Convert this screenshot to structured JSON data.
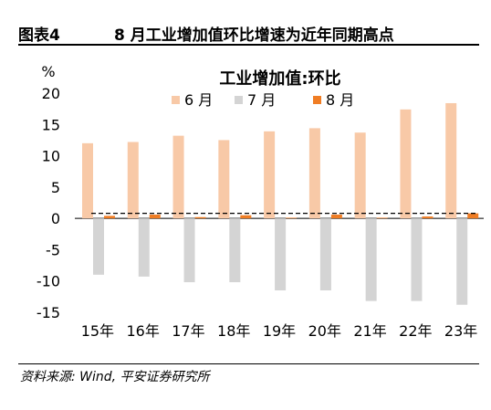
{
  "header": {
    "figure_label": "图表4",
    "figure_title": "8 月工业增加值环比增速为近年同期高点"
  },
  "source": "资料来源: Wind, 平安证券研究所",
  "chart_data": {
    "type": "bar",
    "title": "工业增加值:环比",
    "unit_label": "%",
    "categories": [
      "15年",
      "16年",
      "17年",
      "18年",
      "19年",
      "20年",
      "21年",
      "22年",
      "23年"
    ],
    "series": [
      {
        "name": "6 月",
        "color": "#f8c9a7",
        "values": [
          12.0,
          12.2,
          13.2,
          12.5,
          13.9,
          14.4,
          13.7,
          17.4,
          18.4
        ]
      },
      {
        "name": "7 月",
        "color": "#d4d4d4",
        "values": [
          -9.0,
          -9.3,
          -10.2,
          -10.2,
          -11.5,
          -11.5,
          -13.2,
          -13.2,
          -13.8
        ]
      },
      {
        "name": "8 月",
        "color": "#f07d24",
        "values": [
          0.4,
          0.6,
          0.2,
          0.5,
          0.1,
          0.6,
          0.1,
          0.3,
          0.8
        ]
      }
    ],
    "reference_line": 0.8,
    "ylim": [
      -15,
      20
    ],
    "yticks": [
      -15,
      -10,
      -5,
      0,
      5,
      10,
      15,
      20
    ],
    "legend_position": "top"
  }
}
